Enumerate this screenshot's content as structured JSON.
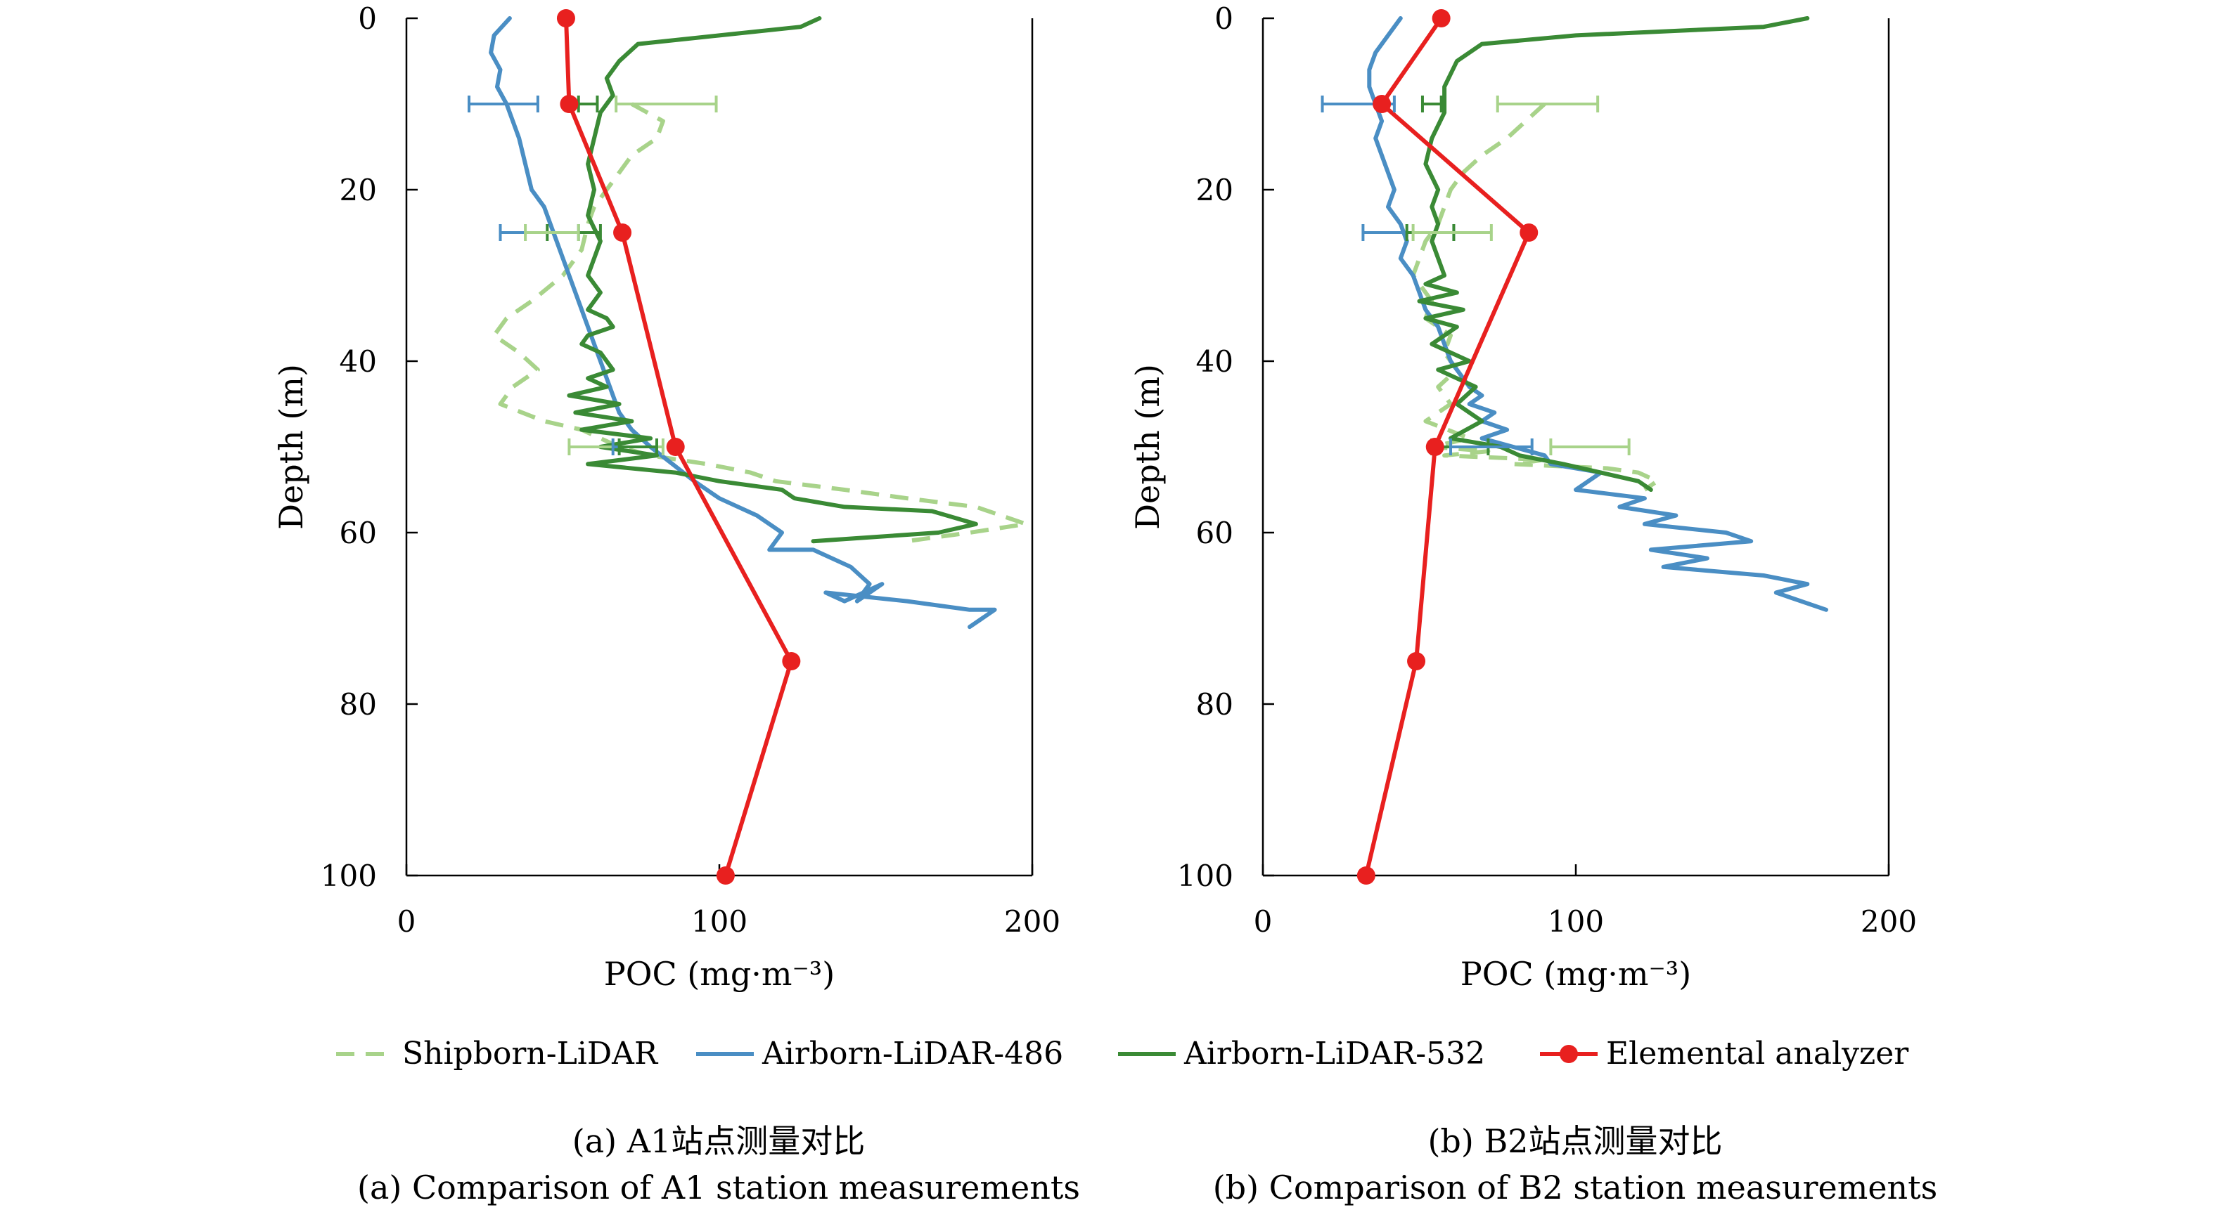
{
  "legend": {
    "items": [
      {
        "label": "Shipborn-LiDAR",
        "color": "#a8d38a",
        "style": "dashed"
      },
      {
        "label": "Airborn-LiDAR-486",
        "color": "#4a8ec4",
        "style": "solid"
      },
      {
        "label": "Airborn-LiDAR-532",
        "color": "#3a8a35",
        "style": "solid"
      },
      {
        "label": "Elemental analyzer",
        "color": "#e8201f",
        "style": "solid-marker"
      }
    ]
  },
  "chart_data": [
    {
      "type": "line",
      "panel": "a",
      "caption_zh": "(a) A1站点测量对比",
      "caption_en": "(a) Comparison of A1 station measurements",
      "xlabel": "POC (mg·m⁻³)",
      "ylabel": "Depth (m)",
      "xlim": [
        0,
        200
      ],
      "ylim": [
        0,
        100
      ],
      "y_inverted": true,
      "xticks": [
        "0",
        "100",
        "200"
      ],
      "yticks": [
        "0",
        "20",
        "40",
        "60",
        "80",
        "100"
      ],
      "grid": false,
      "series": [
        {
          "name": "Shipborn-LiDAR",
          "color": "#a8d38a",
          "style": "dashed",
          "x": [
            72,
            82,
            80,
            72,
            68,
            64,
            60,
            58,
            56,
            50,
            40,
            32,
            28,
            36,
            42,
            34,
            30,
            44,
            56,
            62,
            68,
            78,
            96,
            110,
            118,
            140,
            160,
            182,
            198,
            180,
            160
          ],
          "y": [
            10,
            12,
            14,
            16,
            18,
            20,
            22,
            24,
            27,
            30,
            33,
            35,
            37,
            39,
            41,
            43,
            45,
            47,
            48,
            49,
            50,
            51,
            52,
            53,
            54,
            55,
            56,
            57,
            59,
            60,
            61
          ]
        },
        {
          "name": "Airborn-LiDAR-486",
          "color": "#4a8ec4",
          "style": "solid",
          "x": [
            33,
            28,
            27,
            30,
            29,
            32,
            34,
            36,
            38,
            40,
            44,
            46,
            48,
            50,
            52,
            54,
            56,
            58,
            60,
            62,
            64,
            66,
            68,
            72,
            78,
            85,
            92,
            100,
            112,
            120,
            116,
            130,
            142,
            148,
            144,
            152,
            140,
            134,
            160,
            180,
            188,
            180
          ],
          "y": [
            0,
            2,
            4,
            6,
            8,
            10,
            12,
            14,
            17,
            20,
            22,
            24,
            26,
            28,
            30,
            32,
            34,
            36,
            38,
            40,
            42,
            44,
            46,
            48,
            50,
            52,
            54,
            56,
            58,
            60,
            62,
            62,
            64,
            66,
            68,
            66,
            68,
            67,
            68,
            69,
            69,
            71
          ]
        },
        {
          "name": "Airborn-LiDAR-532",
          "color": "#3a8a35",
          "style": "solid",
          "x": [
            132,
            126,
            100,
            74,
            68,
            64,
            66,
            62,
            60,
            58,
            60,
            58,
            62,
            60,
            58,
            62,
            58,
            64,
            66,
            58,
            56,
            62,
            66,
            58,
            64,
            52,
            68,
            54,
            72,
            56,
            78,
            62,
            80,
            58,
            86,
            100,
            120,
            124,
            140,
            168,
            182,
            170,
            130
          ],
          "y": [
            0,
            1,
            2,
            3,
            5,
            7,
            9,
            11,
            14,
            17,
            20,
            23,
            26,
            28,
            30,
            32,
            34,
            35,
            36,
            37,
            38,
            39,
            41,
            42,
            43,
            44,
            45,
            46,
            47,
            48,
            49,
            50,
            51,
            52,
            53,
            54,
            55,
            56,
            57,
            57.5,
            59,
            60,
            61
          ]
        },
        {
          "name": "Elemental analyzer",
          "color": "#e8201f",
          "style": "solid-marker",
          "x": [
            51,
            52,
            69,
            86,
            123,
            102
          ],
          "y": [
            0,
            10,
            25,
            50,
            75,
            100
          ]
        }
      ],
      "error_bars": [
        {
          "series": "Airborn-LiDAR-486",
          "color": "#4a8ec4",
          "y": 10,
          "xmin": 20,
          "xmax": 42
        },
        {
          "series": "Airborn-LiDAR-532",
          "color": "#3a8a35",
          "y": 10,
          "xmin": 55,
          "xmax": 61
        },
        {
          "series": "Shipborn-LiDAR",
          "color": "#a8d38a",
          "y": 10,
          "xmin": 67,
          "xmax": 99
        },
        {
          "series": "Airborn-LiDAR-486",
          "color": "#4a8ec4",
          "y": 25,
          "xmin": 30,
          "xmax": 55
        },
        {
          "series": "Airborn-LiDAR-532",
          "color": "#3a8a35",
          "y": 25,
          "xmin": 45,
          "xmax": 62
        },
        {
          "series": "Shipborn-LiDAR",
          "color": "#a8d38a",
          "y": 25,
          "xmin": 38,
          "xmax": 55
        },
        {
          "series": "Shipborn-LiDAR",
          "color": "#a8d38a",
          "y": 50,
          "xmin": 52,
          "xmax": 82
        },
        {
          "series": "Airborn-LiDAR-486",
          "color": "#4a8ec4",
          "y": 50,
          "xmin": 66,
          "xmax": 80
        },
        {
          "series": "Airborn-LiDAR-532",
          "color": "#3a8a35",
          "y": 50,
          "xmin": 68,
          "xmax": 80
        }
      ]
    },
    {
      "type": "line",
      "panel": "b",
      "caption_zh": "(b) B2站点测量对比",
      "caption_en": "(b) Comparison of B2 station measurements",
      "xlabel": "POC (mg·m⁻³)",
      "ylabel": "Depth (m)",
      "xlim": [
        0,
        200
      ],
      "ylim": [
        0,
        100
      ],
      "y_inverted": true,
      "xticks": [
        "0",
        "100",
        "200"
      ],
      "yticks": [
        "0",
        "20",
        "40",
        "60",
        "80",
        "100"
      ],
      "grid": false,
      "series": [
        {
          "name": "Shipborn-LiDAR",
          "color": "#a8d38a",
          "style": "dashed",
          "x": [
            90,
            84,
            78,
            70,
            64,
            60,
            58,
            56,
            52,
            50,
            48,
            54,
            52,
            60,
            58,
            62,
            56,
            60,
            52,
            66,
            54,
            72,
            58,
            90,
            80,
            110,
            120,
            126,
            122
          ],
          "y": [
            10,
            12,
            14,
            16,
            18,
            20,
            22,
            24,
            26,
            28,
            30,
            33,
            35,
            37,
            39,
            41,
            43,
            45,
            47,
            49,
            50,
            50.5,
            51,
            51.5,
            52,
            52.5,
            53,
            54,
            55
          ]
        },
        {
          "name": "Airborn-LiDAR-486",
          "color": "#4a8ec4",
          "style": "solid",
          "x": [
            44,
            40,
            36,
            34,
            34,
            36,
            38,
            36,
            38,
            40,
            42,
            40,
            44,
            46,
            44,
            48,
            50,
            52,
            56,
            58,
            60,
            62,
            64,
            66,
            70,
            66,
            74,
            70,
            78,
            70,
            80,
            90,
            92,
            108,
            100,
            122,
            114,
            132,
            122,
            148,
            156,
            124,
            142,
            128,
            160,
            174,
            164,
            180
          ],
          "y": [
            0,
            2,
            4,
            6,
            8,
            10,
            12,
            14,
            16,
            18,
            20,
            22,
            24,
            26,
            28,
            30,
            32,
            34,
            36,
            38,
            40,
            41,
            42,
            43,
            44,
            45,
            46,
            47,
            48,
            49,
            50,
            51,
            52,
            53,
            55,
            56,
            57,
            58,
            59,
            60,
            61,
            62,
            63,
            64,
            65,
            66,
            67,
            69
          ]
        },
        {
          "name": "Airborn-LiDAR-532",
          "color": "#3a8a35",
          "style": "solid",
          "x": [
            174,
            160,
            100,
            70,
            62,
            58,
            58,
            54,
            52,
            56,
            54,
            56,
            54,
            56,
            58,
            52,
            62,
            50,
            64,
            52,
            62,
            54,
            66,
            56,
            68,
            62,
            70,
            60,
            76,
            82,
            96,
            108,
            120,
            124
          ],
          "y": [
            0,
            1,
            2,
            3,
            5,
            8,
            11,
            14,
            17,
            20,
            22,
            24,
            26,
            28,
            30,
            31,
            32,
            33,
            34,
            35,
            36,
            38,
            40,
            41,
            43,
            45,
            47,
            49,
            50,
            51,
            52,
            53,
            54,
            55
          ]
        },
        {
          "name": "Elemental analyzer",
          "color": "#e8201f",
          "style": "solid-marker",
          "x": [
            57,
            38,
            85,
            55,
            49,
            33
          ],
          "y": [
            0,
            10,
            25,
            50,
            75,
            100
          ]
        }
      ],
      "error_bars": [
        {
          "series": "Airborn-LiDAR-486",
          "color": "#4a8ec4",
          "y": 10,
          "xmin": 19,
          "xmax": 42
        },
        {
          "series": "Airborn-LiDAR-532",
          "color": "#3a8a35",
          "y": 10,
          "xmin": 51,
          "xmax": 57
        },
        {
          "series": "Shipborn-LiDAR",
          "color": "#a8d38a",
          "y": 10,
          "xmin": 75,
          "xmax": 107
        },
        {
          "series": "Airborn-LiDAR-486",
          "color": "#4a8ec4",
          "y": 25,
          "xmin": 32,
          "xmax": 61
        },
        {
          "series": "Airborn-LiDAR-532",
          "color": "#3a8a35",
          "y": 25,
          "xmin": 46,
          "xmax": 61
        },
        {
          "series": "Shipborn-LiDAR",
          "color": "#a8d38a",
          "y": 25,
          "xmin": 48,
          "xmax": 73
        },
        {
          "series": "Airborn-LiDAR-532",
          "color": "#3a8a35",
          "y": 50,
          "xmin": 54,
          "xmax": 72
        },
        {
          "series": "Airborn-LiDAR-486",
          "color": "#4a8ec4",
          "y": 50,
          "xmin": 60,
          "xmax": 86
        },
        {
          "series": "Shipborn-LiDAR",
          "color": "#a8d38a",
          "y": 50,
          "xmin": 92,
          "xmax": 117
        }
      ]
    }
  ]
}
